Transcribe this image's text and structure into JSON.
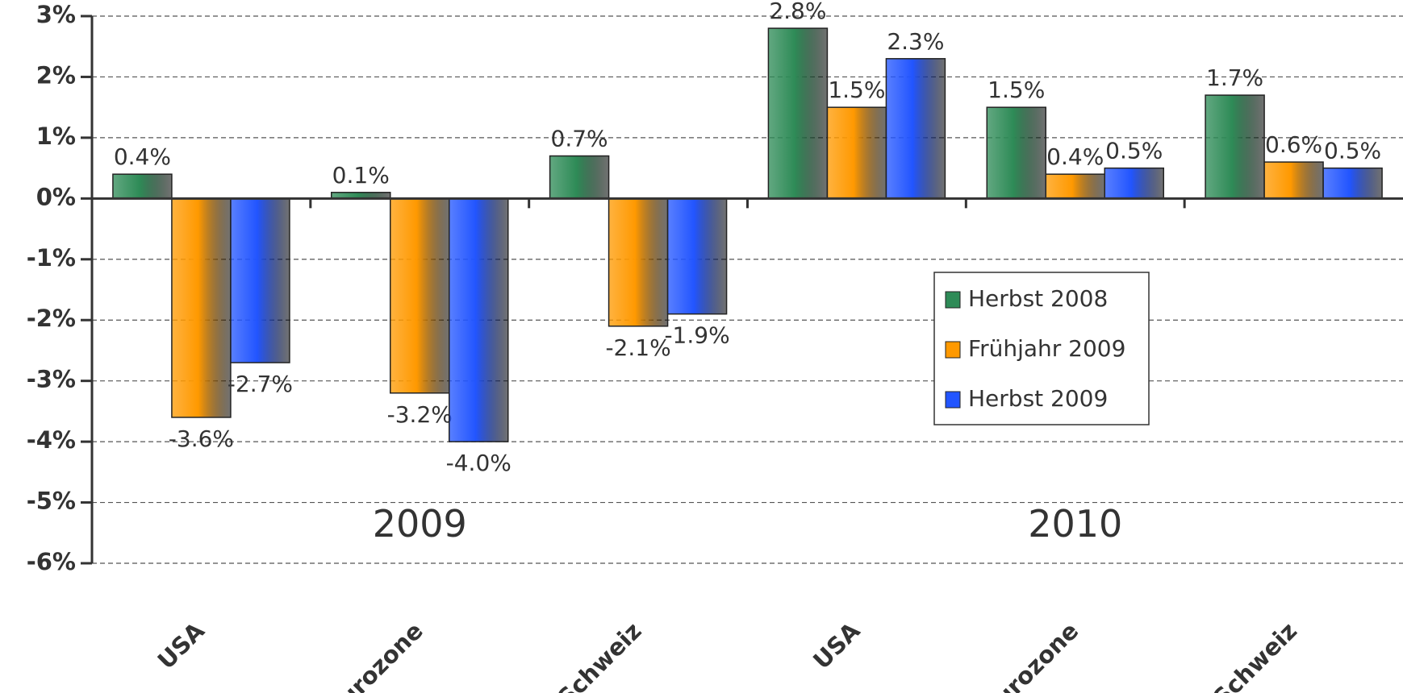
{
  "chart_data": {
    "type": "bar",
    "categories": [
      "USA",
      "Eurozone",
      "Schweiz",
      "USA",
      "Eurozone",
      "Schweiz"
    ],
    "annotations": [
      "2009",
      "2010"
    ],
    "series": [
      {
        "name": "Herbst 2008",
        "color": "#2e8b57",
        "values": [
          0.4,
          0.1,
          0.7,
          2.8,
          1.5,
          1.7
        ],
        "value_labels": [
          "0.4%",
          "0.1%",
          "0.7%",
          "2.8%",
          "1.5%",
          "1.7%"
        ]
      },
      {
        "name": "Frühjahr 2009",
        "color": "#ff9900",
        "values": [
          -3.6,
          -3.2,
          -2.1,
          1.5,
          0.4,
          0.6
        ],
        "value_labels": [
          "-3.6%",
          "-3.2%",
          "-2.1%",
          "1.5%",
          "0.4%",
          "0.6%"
        ]
      },
      {
        "name": "Herbst 2009",
        "color": "#2255ff",
        "values": [
          -2.7,
          -4.0,
          -1.9,
          2.3,
          0.5,
          0.5
        ],
        "value_labels": [
          "-2.7%",
          "-4.0%",
          "-1.9%",
          "2.3%",
          "0.5%",
          "0.5%"
        ]
      }
    ],
    "ylim": [
      -6,
      3
    ],
    "yticks": [
      {
        "value": -6,
        "label": "-6%"
      },
      {
        "value": -5,
        "label": "-5%"
      },
      {
        "value": -4,
        "label": "-4%"
      },
      {
        "value": -3,
        "label": "-3%"
      },
      {
        "value": -2,
        "label": "-2%"
      },
      {
        "value": -1,
        "label": "-1%"
      },
      {
        "value": 0,
        "label": "0%"
      },
      {
        "value": 1,
        "label": "1%"
      },
      {
        "value": 2,
        "label": "2%"
      },
      {
        "value": 3,
        "label": "3%"
      }
    ],
    "grid": true,
    "legend": "center-right"
  }
}
